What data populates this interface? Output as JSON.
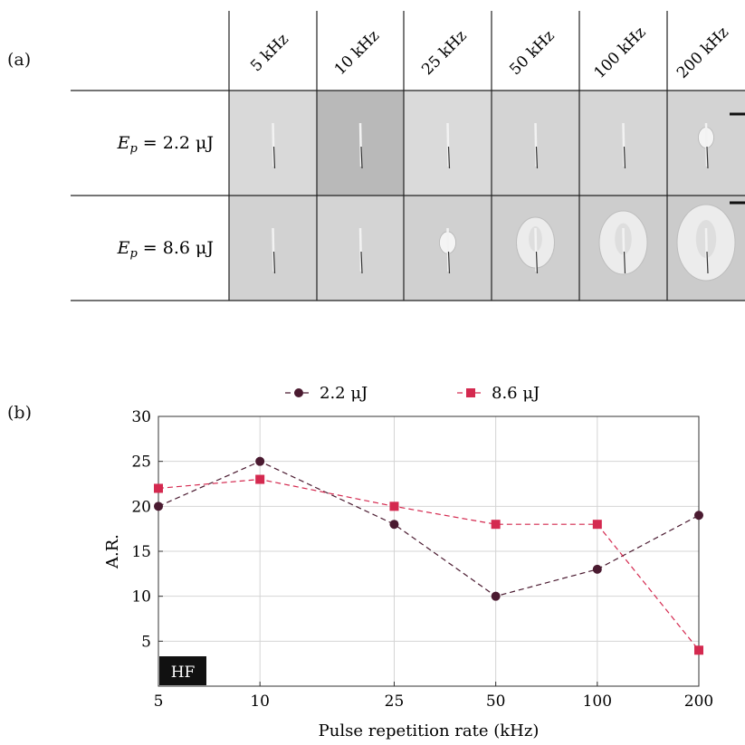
{
  "panel_a": {
    "label": "(a)",
    "columns": [
      "5 kHz",
      "10 kHz",
      "25 kHz",
      "50 kHz",
      "100 kHz",
      "200 kHz"
    ],
    "rows": [
      {
        "label_prefix": "E",
        "label_sub": "p",
        "label_rest": " = 2.2 μJ"
      },
      {
        "label_prefix": "E",
        "label_sub": "p",
        "label_rest": " = 8.6 μJ"
      }
    ],
    "tile_shades": [
      [
        "#d9d9d9",
        "#b9b9b9",
        "#dadada",
        "#d4d4d4",
        "#d6d6d6",
        "#d3d3d3"
      ],
      [
        "#d2d2d2",
        "#d4d4d4",
        "#d0d0d0",
        "#cfcfcf",
        "#cdcdcd",
        "#cbcbcb"
      ]
    ],
    "damage_level": [
      [
        0.1,
        0.1,
        0.1,
        0.1,
        0.1,
        0.25
      ],
      [
        0.1,
        0.12,
        0.3,
        0.5,
        0.75,
        1.0
      ]
    ]
  },
  "panel_b": {
    "label": "(b)",
    "badge": "HF"
  },
  "chart_data": {
    "type": "line",
    "title": "",
    "xlabel": "Pulse repetition rate (kHz)",
    "ylabel": "A.R.",
    "x_scale": "log",
    "x": [
      5,
      10,
      25,
      50,
      100,
      200
    ],
    "x_ticks": [
      "5",
      "10",
      "25",
      "50",
      "100",
      "200"
    ],
    "y_ticks": [
      5,
      10,
      15,
      20,
      25,
      30
    ],
    "ylim": [
      0,
      30
    ],
    "grid": true,
    "legend_position": "top-center",
    "series": [
      {
        "name": "2.2 μJ",
        "values": [
          20,
          25,
          18,
          10,
          13,
          19
        ],
        "color": "#4a1a30",
        "marker": "circle",
        "dash": "dashed"
      },
      {
        "name": "8.6 μJ",
        "values": [
          22,
          23,
          20,
          18,
          18,
          4
        ],
        "color": "#d4294f",
        "marker": "square",
        "dash": "dashed"
      }
    ]
  }
}
